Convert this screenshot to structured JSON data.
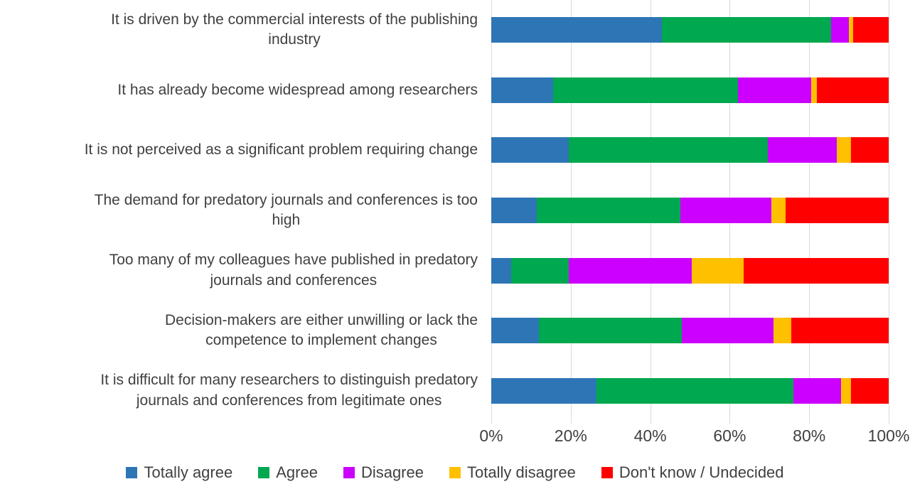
{
  "chart_data": {
    "type": "bar",
    "stacked": true,
    "orientation": "horizontal",
    "title": "",
    "categories": [
      "It is driven by the commercial interests of the publishing\nindustry",
      "It has already become widespread among researchers",
      "It is not perceived as a significant problem requiring change",
      "The demand for predatory journals and conferences is too\nhigh",
      "Too many of my colleagues have published in predatory\njournals and conferences",
      "Decision-makers are either unwilling or lack the\ncompetence to implement changes",
      "It is difficult for many researchers to distinguish predatory\njournals and conferences from legitimate ones"
    ],
    "series": [
      {
        "name": "Totally agree",
        "color": "#2E75B6",
        "values": [
          43,
          15.5,
          19.5,
          11.5,
          5,
          12,
          26.5
        ]
      },
      {
        "name": "Agree",
        "color": "#00A84F",
        "values": [
          42.5,
          46.5,
          50,
          36,
          14.5,
          36,
          49.5
        ]
      },
      {
        "name": "Disagree",
        "color": "#CC00FF",
        "values": [
          4.5,
          18.5,
          17.5,
          23,
          31,
          23,
          12
        ]
      },
      {
        "name": "Totally disagree",
        "color": "#FFC000",
        "values": [
          1,
          1.5,
          3.5,
          3.5,
          13,
          4.5,
          2.5
        ]
      },
      {
        "name": "Don't know / Undecided",
        "color": "#FF0000",
        "values": [
          9,
          18,
          9.5,
          26,
          36.5,
          24.5,
          9.5
        ]
      }
    ],
    "x_ticks": [
      "0%",
      "20%",
      "40%",
      "60%",
      "80%",
      "100%"
    ],
    "xlim": [
      0,
      100
    ],
    "grid": true,
    "legend_position": "bottom"
  },
  "colors": {
    "text": "#404040",
    "gridline": "#D9D9D9",
    "background": "#FFFFFF"
  }
}
